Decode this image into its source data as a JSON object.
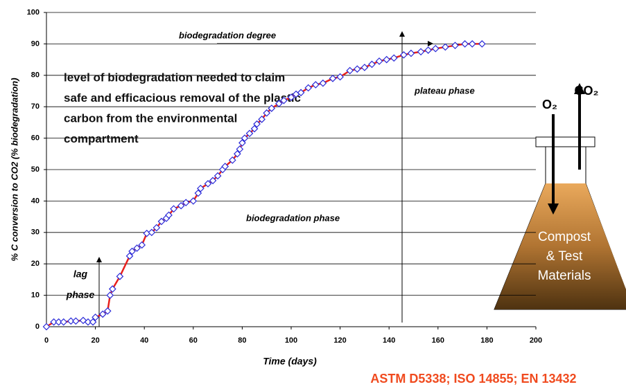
{
  "chart_data": {
    "type": "line",
    "x_label": "Time (days)",
    "y_label": "% C conversion to CO2 (% biodegradation)",
    "x": [
      0,
      3,
      5,
      7,
      10,
      12,
      15,
      17,
      19,
      20,
      23,
      25,
      26,
      27,
      30,
      34,
      35,
      37,
      39,
      41,
      43,
      45,
      47,
      49,
      50,
      52,
      55,
      57,
      60,
      62,
      63,
      66,
      68,
      70,
      72,
      73,
      76,
      78,
      79,
      80,
      81,
      83,
      85,
      86,
      88,
      90,
      92,
      95,
      97,
      100,
      102,
      104,
      107,
      110,
      113,
      117,
      120,
      124,
      127,
      130,
      133,
      136,
      139,
      142,
      146,
      149,
      153,
      156,
      159,
      163,
      167,
      171,
      174,
      178
    ],
    "series": [
      {
        "color": "#e8201c",
        "marker_color": "#2a2ad8",
        "values": [
          0,
          1.5,
          1.5,
          1.5,
          1.8,
          1.8,
          2,
          1.5,
          1.5,
          3,
          4,
          5,
          10,
          12,
          16,
          22.5,
          24,
          25,
          26,
          29.7,
          30,
          31.5,
          33.5,
          34.5,
          35.5,
          37.5,
          38.5,
          39.5,
          40,
          42.5,
          44,
          45.5,
          46.5,
          48,
          50,
          51,
          53,
          55,
          56.5,
          58.5,
          60,
          61.5,
          63,
          64.5,
          66,
          68,
          69.5,
          71,
          72,
          73,
          74,
          74.5,
          76,
          77,
          77.5,
          79,
          79.5,
          81.5,
          82,
          82.5,
          83.5,
          84.5,
          85,
          85.5,
          86.5,
          87,
          87.5,
          88,
          88.5,
          89,
          89.5,
          90,
          90,
          90
        ]
      }
    ],
    "xlim": [
      0,
      200
    ],
    "xticks": [
      0,
      20,
      40,
      60,
      80,
      100,
      120,
      140,
      160,
      180,
      200
    ],
    "ylim": [
      0,
      100
    ],
    "yticks": [
      0,
      10,
      20,
      30,
      40,
      50,
      60,
      70,
      80,
      90,
      100
    ],
    "grid": true,
    "annotations": {
      "degree": "biodegradation degree",
      "claim": [
        "level of biodegradation needed to  claim",
        "safe and efficacious removal of the plastic",
        "carbon from the environmental",
        "compartment"
      ],
      "plateau": "plateau phase",
      "phase": "biodegradation phase",
      "lag": [
        "lag",
        "phase"
      ],
      "o2": "O₂",
      "co2": "CO₂",
      "compost": [
        "Compost",
        "& Test",
        "Materials"
      ],
      "standards": "ASTM D5338; ISO 14855; EN 13432"
    }
  }
}
